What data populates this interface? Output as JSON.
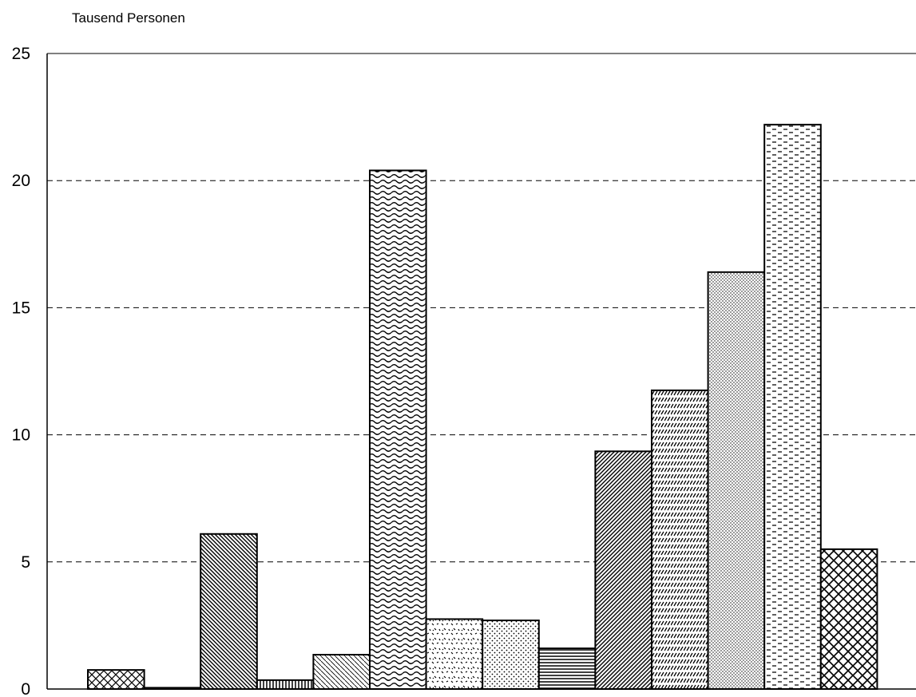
{
  "chart_data": {
    "type": "bar",
    "title": "",
    "xlabel": "",
    "ylabel": "Tausend Personen",
    "ylim": [
      0,
      25
    ],
    "yticks": [
      0,
      5,
      10,
      15,
      20,
      25
    ],
    "grid": true,
    "legend": "none",
    "values": [
      0.75,
      0.05,
      6.1,
      0.35,
      1.35,
      20.4,
      2.75,
      2.7,
      1.6,
      9.35,
      11.75,
      16.4,
      22.2,
      5.5
    ],
    "patterns": [
      "crosshatch",
      "solid-gray",
      "diagonal-back",
      "vertical",
      "diagonal-back-fine",
      "wave",
      "scatter",
      "dots",
      "horizontal",
      "diagonal",
      "dashed-diagonal",
      "fine-dots",
      "dashes",
      "diamonds"
    ]
  }
}
